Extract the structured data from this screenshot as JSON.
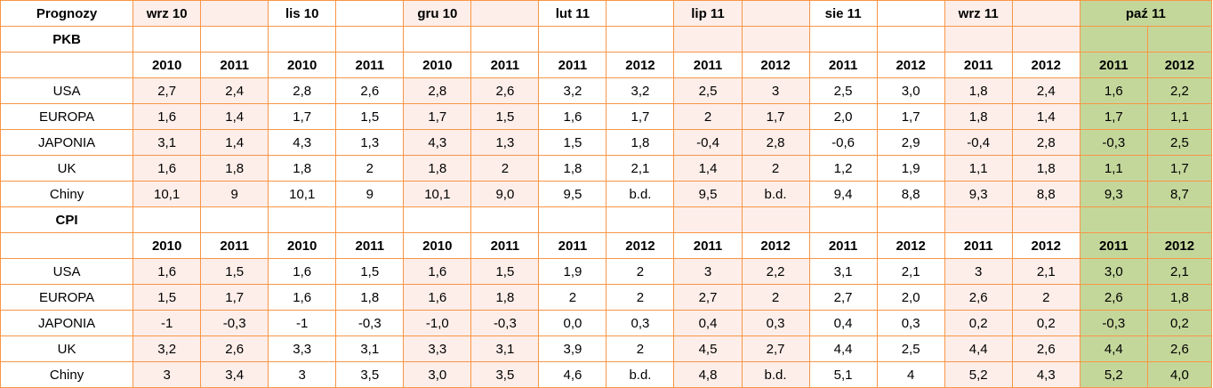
{
  "header": {
    "corner": "Prognozy",
    "periods": [
      "wrz 10",
      "lis 10",
      "gru 10",
      "lut 11",
      "lip 11",
      "sie 11",
      "wrz 11",
      "paź 11"
    ]
  },
  "sections": [
    {
      "title": "PKB",
      "years": [
        "2010",
        "2011",
        "2010",
        "2011",
        "2010",
        "2011",
        "2011",
        "2012",
        "2011",
        "2012",
        "2011",
        "2012",
        "2011",
        "2012",
        "2011",
        "2012"
      ],
      "rows": [
        {
          "label": "USA",
          "values": [
            "2,7",
            "2,4",
            "2,8",
            "2,6",
            "2,8",
            "2,6",
            "3,2",
            "3,2",
            "2,5",
            "3",
            "2,5",
            "3,0",
            "1,8",
            "2,4",
            "1,6",
            "2,2"
          ]
        },
        {
          "label": "EUROPA",
          "values": [
            "1,6",
            "1,4",
            "1,7",
            "1,5",
            "1,7",
            "1,5",
            "1,6",
            "1,7",
            "2",
            "1,7",
            "2,0",
            "1,7",
            "1,8",
            "1,4",
            "1,7",
            "1,1"
          ]
        },
        {
          "label": "JAPONIA",
          "values": [
            "3,1",
            "1,4",
            "4,3",
            "1,3",
            "4,3",
            "1,3",
            "1,5",
            "1,8",
            "-0,4",
            "2,8",
            "-0,6",
            "2,9",
            "-0,4",
            "2,8",
            "-0,3",
            "2,5"
          ]
        },
        {
          "label": "UK",
          "values": [
            "1,6",
            "1,8",
            "1,8",
            "2",
            "1,8",
            "2",
            "1,8",
            "2,1",
            "1,4",
            "2",
            "1,2",
            "1,9",
            "1,1",
            "1,8",
            "1,1",
            "1,7"
          ]
        },
        {
          "label": "Chiny",
          "values": [
            "10,1",
            "9",
            "10,1",
            "9",
            "10,1",
            "9,0",
            "9,5",
            "b.d.",
            "9,5",
            "b.d.",
            "9,4",
            "8,8",
            "9,3",
            "8,8",
            "9,3",
            "8,7"
          ]
        }
      ]
    },
    {
      "title": "CPI",
      "years": [
        "2010",
        "2011",
        "2010",
        "2011",
        "2010",
        "2011",
        "2011",
        "2012",
        "2011",
        "2012",
        "2011",
        "2012",
        "2011",
        "2012",
        "2011",
        "2012"
      ],
      "rows": [
        {
          "label": "USA",
          "values": [
            "1,6",
            "1,5",
            "1,6",
            "1,5",
            "1,6",
            "1,5",
            "1,9",
            "2",
            "3",
            "2,2",
            "3,1",
            "2,1",
            "3",
            "2,1",
            "3,0",
            "2,1"
          ]
        },
        {
          "label": "EUROPA",
          "values": [
            "1,5",
            "1,7",
            "1,6",
            "1,8",
            "1,6",
            "1,8",
            "2",
            "2",
            "2,7",
            "2",
            "2,7",
            "2,0",
            "2,6",
            "2",
            "2,6",
            "1,8"
          ]
        },
        {
          "label": "JAPONIA",
          "values": [
            "-1",
            "-0,3",
            "-1",
            "-0,3",
            "-1,0",
            "-0,3",
            "0,0",
            "0,3",
            "0,4",
            "0,3",
            "0,4",
            "0,3",
            "0,2",
            "0,2",
            "-0,3",
            "0,2"
          ]
        },
        {
          "label": "UK",
          "values": [
            "3,2",
            "2,6",
            "3,3",
            "3,1",
            "3,3",
            "3,1",
            "3,9",
            "2",
            "4,5",
            "2,7",
            "4,4",
            "2,5",
            "4,4",
            "2,6",
            "4,4",
            "2,6"
          ]
        },
        {
          "label": "Chiny",
          "values": [
            "3",
            "3,4",
            "3",
            "3,5",
            "3,0",
            "3,5",
            "4,6",
            "b.d.",
            "4,8",
            "b.d.",
            "5,1",
            "4",
            "5,2",
            "4,3",
            "5,2",
            "4,0"
          ]
        }
      ]
    }
  ],
  "colors": {
    "border": "#f79646",
    "pink": "#fdeee9",
    "green": "#c4d79b"
  }
}
